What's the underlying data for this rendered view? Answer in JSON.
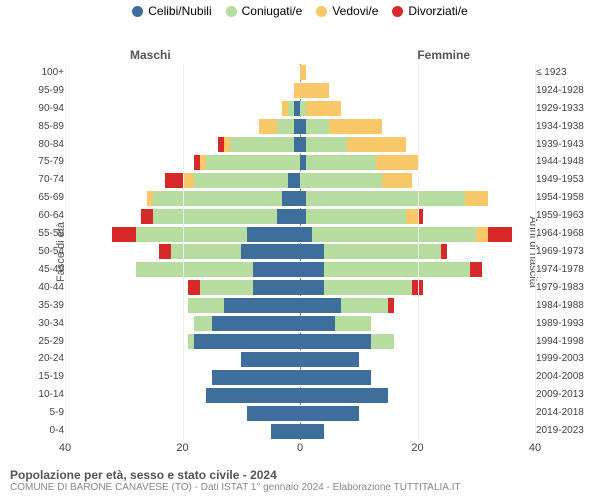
{
  "legend": [
    {
      "label": "Celibi/Nubili",
      "color": "#3d6e9c"
    },
    {
      "label": "Coniugati/e",
      "color": "#b7dca0"
    },
    {
      "label": "Vedovi/e",
      "color": "#f8c767"
    },
    {
      "label": "Divorziati/e",
      "color": "#d8292a"
    }
  ],
  "side_labels": {
    "m": "Maschi",
    "f": "Femmine"
  },
  "axis_titles": {
    "left": "Fasce di età",
    "right": "Anni di nascita"
  },
  "x": {
    "max": 40,
    "ticks": [
      40,
      20,
      0,
      20,
      40
    ]
  },
  "colors": {
    "celibi": "#3d6e9c",
    "coniugati": "#b7dca0",
    "vedovi": "#f8c767",
    "divorziati": "#d8292a",
    "grid": "#eeeeee",
    "zero": "#888888",
    "text": "#444444"
  },
  "age_labels": [
    "0-4",
    "5-9",
    "10-14",
    "15-19",
    "20-24",
    "25-29",
    "30-34",
    "35-39",
    "40-44",
    "45-49",
    "50-54",
    "55-59",
    "60-64",
    "65-69",
    "70-74",
    "75-79",
    "80-84",
    "85-89",
    "90-94",
    "95-99",
    "100+"
  ],
  "birth_labels": [
    "2019-2023",
    "2014-2018",
    "2009-2013",
    "2004-2008",
    "1999-2003",
    "1994-1998",
    "1989-1993",
    "1984-1988",
    "1979-1983",
    "1974-1978",
    "1969-1973",
    "1964-1968",
    "1959-1963",
    "1954-1958",
    "1949-1953",
    "1944-1948",
    "1939-1943",
    "1934-1938",
    "1929-1933",
    "1924-1928",
    "≤ 1923"
  ],
  "rows": [
    {
      "m": {
        "cel": 5,
        "con": 0,
        "ved": 0,
        "div": 0
      },
      "f": {
        "cel": 4,
        "con": 0,
        "ved": 0,
        "div": 0
      }
    },
    {
      "m": {
        "cel": 9,
        "con": 0,
        "ved": 0,
        "div": 0
      },
      "f": {
        "cel": 10,
        "con": 0,
        "ved": 0,
        "div": 0
      }
    },
    {
      "m": {
        "cel": 16,
        "con": 0,
        "ved": 0,
        "div": 0
      },
      "f": {
        "cel": 15,
        "con": 0,
        "ved": 0,
        "div": 0
      }
    },
    {
      "m": {
        "cel": 15,
        "con": 0,
        "ved": 0,
        "div": 0
      },
      "f": {
        "cel": 12,
        "con": 0,
        "ved": 0,
        "div": 0
      }
    },
    {
      "m": {
        "cel": 10,
        "con": 0,
        "ved": 0,
        "div": 0
      },
      "f": {
        "cel": 10,
        "con": 0,
        "ved": 0,
        "div": 0
      }
    },
    {
      "m": {
        "cel": 18,
        "con": 1,
        "ved": 0,
        "div": 0
      },
      "f": {
        "cel": 12,
        "con": 4,
        "ved": 0,
        "div": 0
      }
    },
    {
      "m": {
        "cel": 15,
        "con": 3,
        "ved": 0,
        "div": 0
      },
      "f": {
        "cel": 6,
        "con": 6,
        "ved": 0,
        "div": 0
      }
    },
    {
      "m": {
        "cel": 13,
        "con": 6,
        "ved": 0,
        "div": 0
      },
      "f": {
        "cel": 7,
        "con": 8,
        "ved": 0,
        "div": 1
      }
    },
    {
      "m": {
        "cel": 8,
        "con": 9,
        "ved": 0,
        "div": 2
      },
      "f": {
        "cel": 4,
        "con": 15,
        "ved": 0,
        "div": 2
      }
    },
    {
      "m": {
        "cel": 8,
        "con": 20,
        "ved": 0,
        "div": 0
      },
      "f": {
        "cel": 4,
        "con": 25,
        "ved": 0,
        "div": 2
      }
    },
    {
      "m": {
        "cel": 10,
        "con": 12,
        "ved": 0,
        "div": 2
      },
      "f": {
        "cel": 4,
        "con": 20,
        "ved": 0,
        "div": 1
      }
    },
    {
      "m": {
        "cel": 9,
        "con": 19,
        "ved": 0,
        "div": 4
      },
      "f": {
        "cel": 2,
        "con": 28,
        "ved": 2,
        "div": 4
      }
    },
    {
      "m": {
        "cel": 4,
        "con": 21,
        "ved": 0,
        "div": 2
      },
      "f": {
        "cel": 1,
        "con": 17,
        "ved": 2,
        "div": 1
      }
    },
    {
      "m": {
        "cel": 3,
        "con": 22,
        "ved": 1,
        "div": 0
      },
      "f": {
        "cel": 1,
        "con": 27,
        "ved": 4,
        "div": 0
      }
    },
    {
      "m": {
        "cel": 2,
        "con": 16,
        "ved": 2,
        "div": 3
      },
      "f": {
        "cel": 0,
        "con": 14,
        "ved": 5,
        "div": 0
      }
    },
    {
      "m": {
        "cel": 0,
        "con": 16,
        "ved": 1,
        "div": 1
      },
      "f": {
        "cel": 1,
        "con": 12,
        "ved": 7,
        "div": 0
      }
    },
    {
      "m": {
        "cel": 1,
        "con": 11,
        "ved": 1,
        "div": 1
      },
      "f": {
        "cel": 1,
        "con": 7,
        "ved": 10,
        "div": 0
      }
    },
    {
      "m": {
        "cel": 1,
        "con": 3,
        "ved": 3,
        "div": 0
      },
      "f": {
        "cel": 1,
        "con": 4,
        "ved": 9,
        "div": 0
      }
    },
    {
      "m": {
        "cel": 1,
        "con": 1,
        "ved": 1,
        "div": 0
      },
      "f": {
        "cel": 0,
        "con": 1,
        "ved": 6,
        "div": 0
      }
    },
    {
      "m": {
        "cel": 0,
        "con": 0,
        "ved": 1,
        "div": 0
      },
      "f": {
        "cel": 0,
        "con": 0,
        "ved": 5,
        "div": 0
      }
    },
    {
      "m": {
        "cel": 0,
        "con": 0,
        "ved": 0,
        "div": 0
      },
      "f": {
        "cel": 0,
        "con": 0,
        "ved": 1,
        "div": 0
      }
    }
  ],
  "caption": {
    "title": "Popolazione per età, sesso e stato civile - 2024",
    "sub": "COMUNE DI BARONE CANAVESE (TO) - Dati ISTAT 1° gennaio 2024 - Elaborazione TUTTITALIA.IT"
  }
}
